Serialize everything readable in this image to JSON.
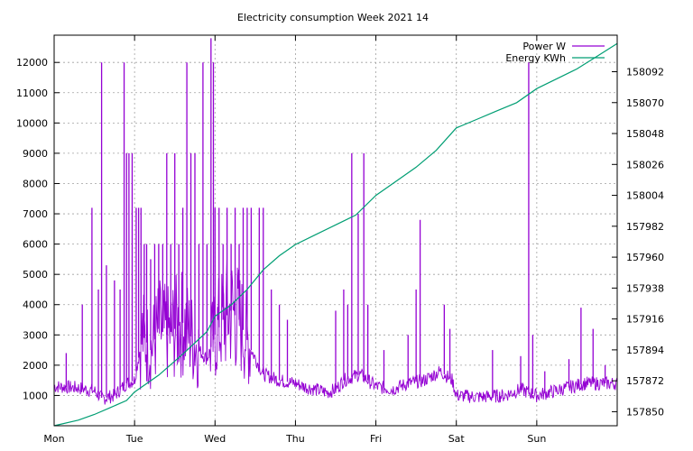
{
  "chart_data": {
    "type": "line",
    "title": "Electricity consumption Week 2021 14",
    "x_categories": [
      "Mon",
      "Tue",
      "Wed",
      "Thu",
      "Fri",
      "Sat",
      "Sun"
    ],
    "x_range_days": [
      0,
      7
    ],
    "y_left": {
      "range": [
        0,
        12900
      ],
      "ticks": [
        1000,
        2000,
        3000,
        4000,
        5000,
        6000,
        7000,
        8000,
        9000,
        10000,
        11000,
        12000
      ]
    },
    "y_right": {
      "range": [
        157840,
        158118
      ],
      "ticks": [
        157850,
        157872,
        157894,
        157916,
        157938,
        157960,
        157982,
        158004,
        158026,
        158048,
        158070,
        158092
      ]
    },
    "grid": true,
    "legend_position": "top-right",
    "series": [
      {
        "name": "Power W",
        "axis": "left",
        "color": "#9400d3",
        "baseline": [
          [
            0.0,
            1300
          ],
          [
            0.3,
            1250
          ],
          [
            0.5,
            1150
          ],
          [
            0.6,
            900
          ],
          [
            0.75,
            1000
          ],
          [
            0.9,
            1400
          ],
          [
            1.0,
            1500
          ],
          [
            1.1,
            3000
          ],
          [
            1.2,
            2500
          ],
          [
            1.3,
            3200
          ],
          [
            1.4,
            3000
          ],
          [
            1.6,
            3400
          ],
          [
            1.8,
            2500
          ],
          [
            1.9,
            2200
          ],
          [
            2.0,
            3000
          ],
          [
            2.1,
            3500
          ],
          [
            2.2,
            3800
          ],
          [
            2.3,
            3500
          ],
          [
            2.45,
            2500
          ],
          [
            2.6,
            1700
          ],
          [
            2.8,
            1500
          ],
          [
            3.0,
            1400
          ],
          [
            3.1,
            1300
          ],
          [
            3.25,
            1200
          ],
          [
            3.4,
            1100
          ],
          [
            3.5,
            1200
          ],
          [
            3.6,
            1500
          ],
          [
            3.8,
            1700
          ],
          [
            4.0,
            1300
          ],
          [
            4.2,
            1200
          ],
          [
            4.4,
            1400
          ],
          [
            4.6,
            1500
          ],
          [
            4.8,
            1800
          ],
          [
            4.95,
            1500
          ],
          [
            5.0,
            1000
          ],
          [
            5.3,
            950
          ],
          [
            5.6,
            1000
          ],
          [
            5.8,
            1200
          ],
          [
            6.0,
            1000
          ],
          [
            6.3,
            1200
          ],
          [
            6.6,
            1400
          ],
          [
            7.0,
            1400
          ]
        ],
        "spikes": [
          [
            0.15,
            2400
          ],
          [
            0.35,
            4000
          ],
          [
            0.47,
            7200
          ],
          [
            0.55,
            4500
          ],
          [
            0.59,
            12000
          ],
          [
            0.65,
            5300
          ],
          [
            0.75,
            4800
          ],
          [
            0.82,
            4500
          ],
          [
            0.87,
            12000
          ],
          [
            0.9,
            9000
          ],
          [
            0.93,
            9000
          ],
          [
            0.97,
            9000
          ],
          [
            1.02,
            7200
          ],
          [
            1.05,
            7200
          ],
          [
            1.08,
            7200
          ],
          [
            1.12,
            6000
          ],
          [
            1.15,
            6000
          ],
          [
            1.2,
            5500
          ],
          [
            1.25,
            6000
          ],
          [
            1.3,
            6000
          ],
          [
            1.35,
            6000
          ],
          [
            1.4,
            9000
          ],
          [
            1.45,
            6000
          ],
          [
            1.5,
            9000
          ],
          [
            1.55,
            6000
          ],
          [
            1.6,
            7200
          ],
          [
            1.65,
            12000
          ],
          [
            1.7,
            9000
          ],
          [
            1.75,
            9000
          ],
          [
            1.8,
            6000
          ],
          [
            1.85,
            12000
          ],
          [
            1.9,
            6000
          ],
          [
            1.95,
            12800
          ],
          [
            1.98,
            12000
          ],
          [
            2.0,
            7200
          ],
          [
            2.05,
            7200
          ],
          [
            2.1,
            6000
          ],
          [
            2.15,
            7200
          ],
          [
            2.2,
            6000
          ],
          [
            2.25,
            7200
          ],
          [
            2.3,
            6000
          ],
          [
            2.35,
            7200
          ],
          [
            2.4,
            7200
          ],
          [
            2.45,
            7200
          ],
          [
            2.55,
            7200
          ],
          [
            2.6,
            7200
          ],
          [
            2.7,
            4500
          ],
          [
            2.8,
            4000
          ],
          [
            2.9,
            3500
          ],
          [
            3.5,
            3800
          ],
          [
            3.6,
            4500
          ],
          [
            3.65,
            4000
          ],
          [
            3.7,
            9000
          ],
          [
            3.78,
            7000
          ],
          [
            3.85,
            9000
          ],
          [
            3.9,
            4000
          ],
          [
            4.1,
            2500
          ],
          [
            4.4,
            3000
          ],
          [
            4.5,
            4500
          ],
          [
            4.55,
            6800
          ],
          [
            4.85,
            4000
          ],
          [
            4.92,
            3200
          ],
          [
            5.45,
            2500
          ],
          [
            5.8,
            2300
          ],
          [
            5.9,
            12000
          ],
          [
            5.95,
            3000
          ],
          [
            6.1,
            1800
          ],
          [
            6.4,
            2200
          ],
          [
            6.55,
            3900
          ],
          [
            6.7,
            3200
          ],
          [
            6.85,
            2000
          ]
        ]
      },
      {
        "name": "Energy KWh",
        "axis": "right",
        "color": "#009e73",
        "points": [
          [
            0.0,
            157840
          ],
          [
            0.3,
            157844
          ],
          [
            0.5,
            157848
          ],
          [
            0.7,
            157853
          ],
          [
            0.9,
            157858
          ],
          [
            1.0,
            157864
          ],
          [
            1.3,
            157876
          ],
          [
            1.6,
            157891
          ],
          [
            1.9,
            157907
          ],
          [
            2.0,
            157918
          ],
          [
            2.2,
            157926
          ],
          [
            2.4,
            157937
          ],
          [
            2.6,
            157951
          ],
          [
            2.8,
            157961
          ],
          [
            3.0,
            157969
          ],
          [
            3.25,
            157976
          ],
          [
            3.5,
            157983
          ],
          [
            3.75,
            157990
          ],
          [
            4.0,
            158004
          ],
          [
            4.25,
            158014
          ],
          [
            4.5,
            158024
          ],
          [
            4.75,
            158036
          ],
          [
            5.0,
            158052
          ],
          [
            5.25,
            158058
          ],
          [
            5.5,
            158064
          ],
          [
            5.75,
            158070
          ],
          [
            6.0,
            158080
          ],
          [
            6.25,
            158087
          ],
          [
            6.5,
            158094
          ],
          [
            6.75,
            158103
          ],
          [
            7.0,
            158112
          ]
        ]
      }
    ]
  }
}
